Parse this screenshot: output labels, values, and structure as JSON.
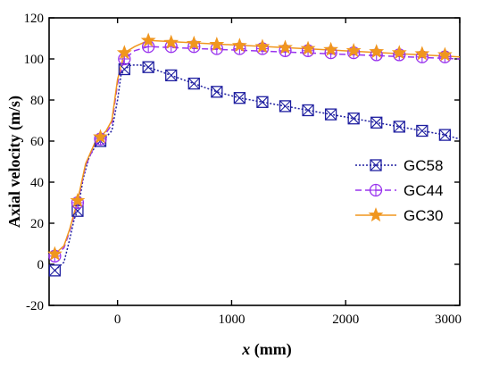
{
  "chart_data": {
    "type": "line",
    "xlabel_var": "x",
    "xlabel_unit": " (mm)",
    "ylabel": "Axial velocity (m/s)",
    "xlim": [
      -600,
      3000
    ],
    "ylim": [
      -20,
      120
    ],
    "xticks": [
      0,
      1000,
      2000,
      3000
    ],
    "yticks": [
      -20,
      0,
      20,
      40,
      60,
      80,
      100,
      120
    ],
    "legend_position": "center-right",
    "series": [
      {
        "name": "GC58",
        "color": "#1f1fa0",
        "marker": "square-x",
        "dash": "dotted",
        "x": [
          -550,
          -350,
          -150,
          60,
          270,
          470,
          670,
          870,
          1070,
          1270,
          1470,
          1670,
          1870,
          2070,
          2270,
          2470,
          2670,
          2870
        ],
        "y": [
          -3,
          26,
          60,
          95,
          96,
          92,
          88,
          84,
          81,
          79,
          77,
          75,
          73,
          71,
          69,
          67,
          65,
          63
        ],
        "line_x": [
          -550,
          -470,
          -420,
          -380,
          -350,
          -300,
          -250,
          -200,
          -150,
          -100,
          -50,
          0,
          30,
          60,
          120,
          200,
          270,
          470,
          670,
          870,
          1070,
          1270,
          1470,
          1670,
          1870,
          2070,
          2270,
          2470,
          2670,
          2870,
          3000
        ],
        "line_y": [
          -3,
          1,
          12,
          22,
          26,
          42,
          52,
          57,
          60,
          62,
          65,
          80,
          92,
          95,
          97,
          97,
          96,
          92,
          88,
          84,
          81,
          79,
          77,
          75,
          73,
          71,
          69,
          67,
          65,
          63,
          61
        ]
      },
      {
        "name": "GC44",
        "color": "#9933ee",
        "marker": "circle-plus",
        "dash": "dashed",
        "x": [
          -550,
          -350,
          -150,
          60,
          270,
          470,
          670,
          870,
          1070,
          1270,
          1470,
          1670,
          1870,
          2070,
          2270,
          2470,
          2670,
          2870
        ],
        "y": [
          4,
          30,
          61,
          100,
          106,
          106,
          106,
          105,
          105,
          105,
          104,
          104,
          103,
          103,
          102,
          102,
          101,
          101
        ],
        "line_x": [
          -550,
          -470,
          -420,
          -350,
          -280,
          -200,
          -150,
          -100,
          -50,
          0,
          60,
          150,
          270,
          3000
        ],
        "line_y": [
          4,
          8,
          16,
          30,
          48,
          58,
          61,
          64,
          68,
          88,
          100,
          104,
          106,
          100
        ]
      },
      {
        "name": "GC30",
        "color": "#f0961e",
        "marker": "star",
        "dash": "solid",
        "x": [
          -550,
          -350,
          -150,
          60,
          270,
          470,
          670,
          870,
          1070,
          1270,
          1470,
          1670,
          1870,
          2070,
          2270,
          2470,
          2670,
          2870
        ],
        "y": [
          5,
          31,
          62,
          103,
          109,
          108,
          107.5,
          107,
          106.5,
          106,
          105.5,
          105,
          104.5,
          104,
          103.5,
          103,
          102.5,
          102
        ],
        "line_x": [
          -550,
          -470,
          -420,
          -350,
          -280,
          -200,
          -150,
          -100,
          -50,
          0,
          60,
          150,
          270,
          3000
        ],
        "line_y": [
          5,
          9,
          17,
          31,
          49,
          59,
          62,
          65,
          70,
          90,
          103,
          106,
          109,
          101
        ]
      }
    ]
  }
}
